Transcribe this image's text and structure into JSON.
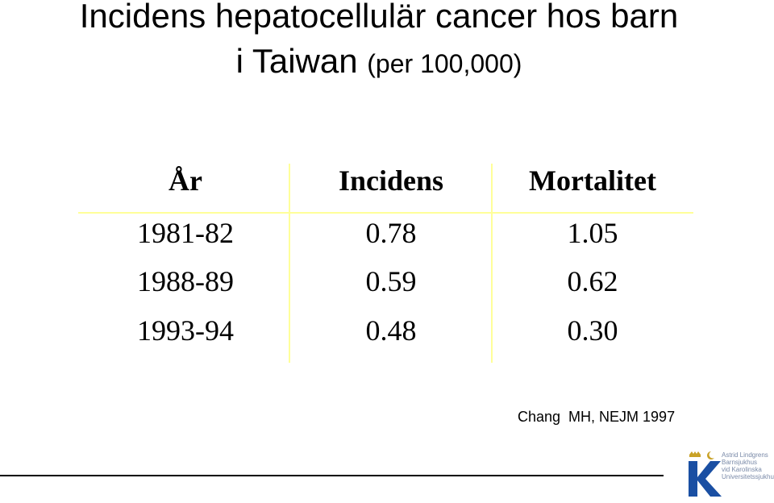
{
  "title": {
    "line1": "Incidens hepatocellulär cancer hos barn",
    "line2_main": "i Taiwan",
    "line2_small": "(per 100,000)"
  },
  "table": {
    "headers": [
      "År",
      "Incidens",
      "Mortalitet"
    ],
    "rows": [
      [
        "1981-82",
        "0.78",
        "1.05"
      ],
      [
        "1988-89",
        "0.59",
        "0.62"
      ],
      [
        "1993-94",
        "0.48",
        "0.30"
      ]
    ]
  },
  "citation": "Chang  MH, NEJM 1997",
  "logo": {
    "letter": "K",
    "text_lines": [
      "Astrid Lindgrens",
      "Barnsjukhus",
      "vid Karolinska",
      "Universitetssjukhuset"
    ]
  },
  "colors": {
    "grid": "#ffff99",
    "logo_blue": "#1a4fa3",
    "logo_text": "#7a8aa8"
  }
}
